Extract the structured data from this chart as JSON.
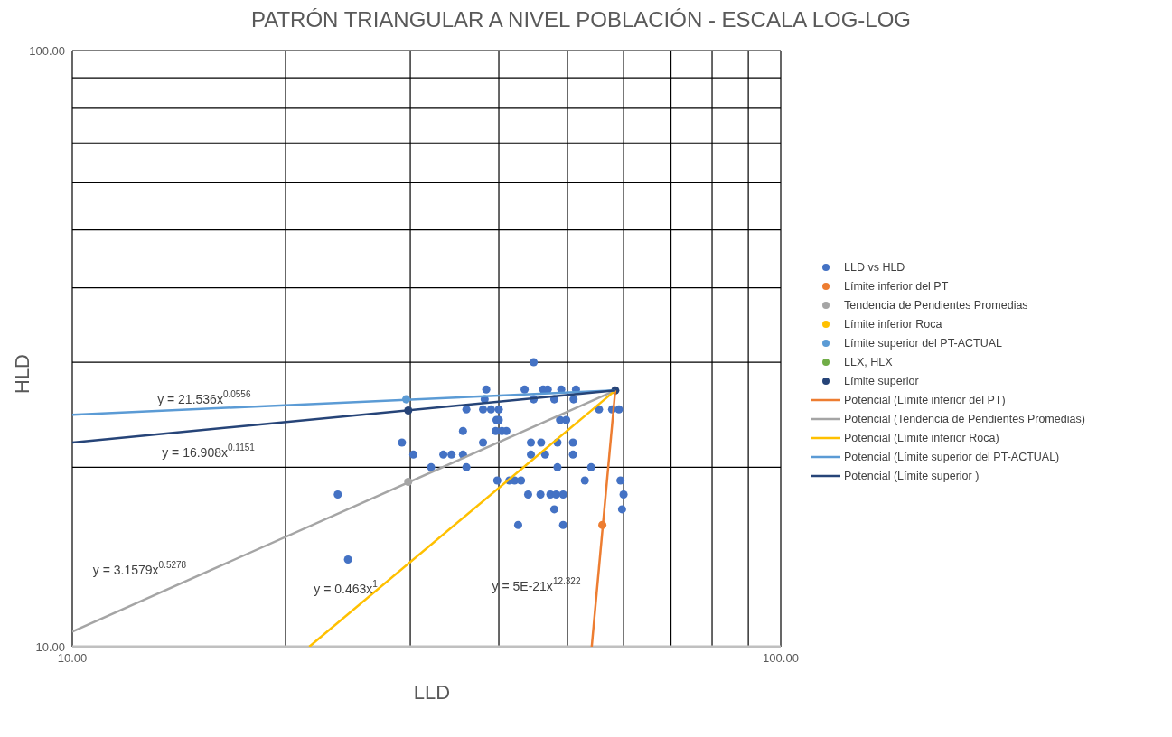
{
  "chart_data": {
    "type": "scatter",
    "title": "PATRÓN TRIANGULAR A NIVEL POBLACIÓN - ESCALA LOG-LOG",
    "xlabel": "LLD",
    "ylabel": "HLD",
    "log": "xy",
    "grid": true,
    "legend": "right",
    "marker": "circle",
    "xlim": [
      10,
      100
    ],
    "ylim": [
      10,
      100
    ],
    "xticks": [
      {
        "value": 10,
        "label": "10.00"
      },
      {
        "value": 20,
        "label": null
      },
      {
        "value": 30,
        "label": null
      },
      {
        "value": 40,
        "label": null
      },
      {
        "value": 50,
        "label": null
      },
      {
        "value": 60,
        "label": null
      },
      {
        "value": 70,
        "label": null
      },
      {
        "value": 80,
        "label": null
      },
      {
        "value": 90,
        "label": null
      },
      {
        "value": 100,
        "label": "100.00"
      }
    ],
    "yticks": [
      {
        "value": 10,
        "label": "10.00"
      },
      {
        "value": 20,
        "label": null
      },
      {
        "value": 30,
        "label": null
      },
      {
        "value": 40,
        "label": null
      },
      {
        "value": 50,
        "label": null
      },
      {
        "value": 60,
        "label": null
      },
      {
        "value": 70,
        "label": null
      },
      {
        "value": 80,
        "label": null
      },
      {
        "value": 90,
        "label": null
      },
      {
        "value": 100,
        "label": "100.00"
      }
    ],
    "series": [
      {
        "name": "LLD vs HLD",
        "color": "#4472c4",
        "x": [
          44.8,
          38.4,
          43.5,
          46.2,
          46.9,
          49.0,
          51.4,
          38.2,
          44.8,
          47.9,
          51.0,
          36.0,
          38.0,
          39.0,
          40.0,
          55.4,
          57.8,
          59.1,
          39.7,
          40.0,
          48.8,
          49.8,
          35.6,
          39.6,
          40.4,
          41.0,
          29.2,
          38.0,
          44.4,
          45.9,
          48.4,
          50.9,
          30.3,
          33.4,
          34.3,
          35.6,
          44.4,
          46.5,
          50.9,
          32.1,
          36.0,
          48.4,
          54.0,
          39.8,
          41.4,
          42.1,
          43.0,
          52.9,
          59.4,
          23.7,
          44.0,
          45.8,
          47.3,
          48.2,
          49.3,
          60.0,
          47.9,
          59.7,
          42.6,
          49.3,
          24.5
        ],
        "values": [
          30,
          27,
          27,
          27,
          27,
          27,
          27,
          26,
          26,
          26,
          26,
          25,
          25,
          25,
          25,
          25,
          25,
          25,
          24,
          24,
          24,
          24,
          23,
          23,
          23,
          23,
          22,
          22,
          22,
          22,
          22,
          22,
          21,
          21,
          21,
          21,
          21,
          21,
          21,
          20,
          20,
          20,
          20,
          19,
          19,
          19,
          19,
          19,
          19,
          18,
          18,
          18,
          18,
          18,
          18,
          18,
          17,
          17,
          16,
          16,
          14
        ]
      },
      {
        "name": "Límite inferior del PT",
        "color": "#ed7d31",
        "x": [
          56.0
        ],
        "values": [
          16
        ]
      },
      {
        "name": "Tendencia de Pendientes Promedias",
        "color": "#a5a5a5",
        "x": [
          29.8
        ],
        "values": [
          18.9
        ]
      },
      {
        "name": "Límite inferior Roca",
        "color": "#ffc000"
      },
      {
        "name": "Límite superior del PT-ACTUAL",
        "color": "#5b9bd5",
        "x": [
          29.6
        ],
        "values": [
          26
        ]
      },
      {
        "name": "LLX, HLX",
        "color": "#70ad47"
      },
      {
        "name": "Límite superior",
        "color": "#264478",
        "x": [
          29.8,
          58.4
        ],
        "values": [
          24.9,
          26.9
        ]
      },
      {
        "name": "Potencial (Límite inferior del PT)",
        "type": "line",
        "marker": "none",
        "color": "#ed7d31",
        "x": [
          54.1,
          58.4
        ],
        "values": [
          10,
          26.9
        ]
      },
      {
        "name": "Potencial (Tendencia de Pendientes Promedias)",
        "type": "line",
        "marker": "none",
        "color": "#a5a5a5",
        "x": [
          10,
          58.4
        ],
        "values": [
          10.6,
          26.9
        ]
      },
      {
        "name": "Potencial (Límite inferior Roca)",
        "type": "line",
        "marker": "none",
        "color": "#ffc000",
        "x": [
          21.6,
          58.4
        ],
        "values": [
          10,
          26.9
        ]
      },
      {
        "name": "Potencial (Límite superior del PT-ACTUAL)",
        "type": "line",
        "marker": "none",
        "color": "#5b9bd5",
        "x": [
          10,
          58.4
        ],
        "values": [
          24.5,
          26.9
        ]
      },
      {
        "name": "Potencial (Límite superior )",
        "type": "line",
        "marker": "none",
        "color": "#264478",
        "x": [
          10,
          58.4
        ],
        "values": [
          22,
          26.9
        ]
      }
    ],
    "annotations": [
      "y = 21.536x$^{0.0556}$",
      "y = 16.908x$^{0.1151}$",
      "y = 3.1579x$^{0.5278}$",
      "y = 0.463x$^{1}$",
      "y = 5E-21x$^{12.322}$"
    ]
  }
}
